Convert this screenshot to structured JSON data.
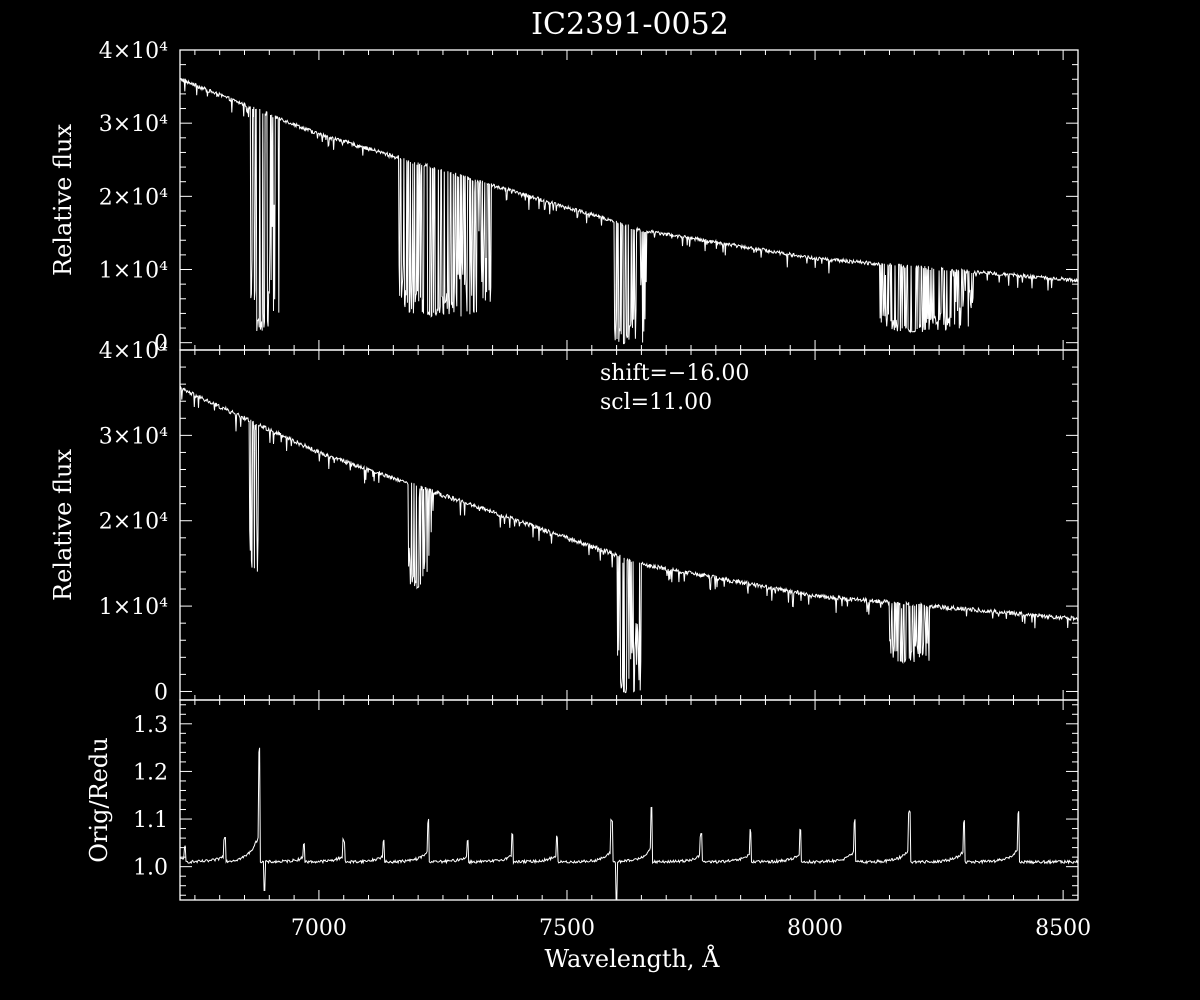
{
  "title": "IC2391-0052",
  "xlabel": "Wavelength, Å",
  "x_tick_labels": [
    "7000",
    "7500",
    "8000",
    "8500"
  ],
  "annotation": {
    "shift": "shift=−16.00",
    "scl": "scl=11.00"
  },
  "panels": [
    {
      "ylabel": "Relative flux",
      "y_tick_labels": [
        "0",
        "1×10⁴",
        "2×10⁴",
        "3×10⁴",
        "4×10⁴"
      ]
    },
    {
      "ylabel": "Relative flux",
      "y_tick_labels": [
        "0",
        "1×10⁴",
        "2×10⁴",
        "3×10⁴",
        "4×10⁴"
      ]
    },
    {
      "ylabel": "Orig/Redu",
      "y_tick_labels": [
        "1.0",
        "1.1",
        "1.2",
        "1.3"
      ]
    }
  ],
  "chart_data": [
    {
      "type": "line",
      "title": "IC2391-0052",
      "xlabel": "Wavelength, Å",
      "ylabel": "Relative flux",
      "xlim": [
        6720,
        8530
      ],
      "ylim": [
        -1000,
        40000
      ],
      "x_ticks": [
        7000,
        7500,
        8000,
        8500
      ],
      "y_ticks": [
        0,
        10000,
        20000,
        30000,
        40000
      ],
      "series": [
        {
          "continuum": {
            "x": [
              6720,
              7000,
              7500,
              7600,
              7640,
              8000,
              8530
            ],
            "y": [
              36000,
              28500,
              18500,
              16500,
              15500,
              11500,
              8500
            ]
          },
          "absorption_bands": [
            {
              "x": [
                6860,
                6920
              ],
              "min_y": 0
            },
            {
              "x": [
                7160,
                7350
              ],
              "min_y": 2500
            },
            {
              "x": [
                7590,
                7660
              ],
              "min_y": -1000
            },
            {
              "x": [
                8130,
                8320
              ],
              "min_y": 1000
            }
          ]
        }
      ]
    },
    {
      "type": "line",
      "xlabel": "Wavelength, Å",
      "ylabel": "Relative flux",
      "xlim": [
        6720,
        8530
      ],
      "ylim": [
        -1000,
        40000
      ],
      "x_ticks": [
        7000,
        7500,
        8000,
        8500
      ],
      "y_ticks": [
        0,
        10000,
        20000,
        30000,
        40000
      ],
      "series": [
        {
          "continuum": {
            "x": [
              6720,
              7000,
              7500,
              7600,
              7640,
              8000,
              8530
            ],
            "y": [
              35500,
              28000,
              18000,
              16000,
              15000,
              11200,
              8500
            ]
          },
          "absorption_bands": [
            {
              "x": [
                6860,
                6880
              ],
              "min_y": 12500
            },
            {
              "x": [
                7180,
                7230
              ],
              "min_y": 11500
            },
            {
              "x": [
                7600,
                7650
              ],
              "min_y": -1000
            },
            {
              "x": [
                8150,
                8230
              ],
              "min_y": 3000
            }
          ]
        }
      ]
    },
    {
      "type": "line",
      "xlabel": "Wavelength, Å",
      "ylabel": "Orig/Redu",
      "xlim": [
        6720,
        8530
      ],
      "ylim": [
        0.93,
        1.35
      ],
      "x_ticks": [
        7000,
        7500,
        8000,
        8500
      ],
      "y_ticks": [
        1.0,
        1.1,
        1.2,
        1.3
      ],
      "series": [
        {
          "baseline": 1.01,
          "peaks": {
            "x": [
              6730,
              6810,
              6880,
              6970,
              7050,
              7130,
              7220,
              7300,
              7390,
              7480,
              7590,
              7670,
              7770,
              7870,
              7970,
              8080,
              8190,
              8300,
              8410
            ],
            "y": [
              1.05,
              1.06,
              1.25,
              1.05,
              1.06,
              1.06,
              1.1,
              1.06,
              1.07,
              1.07,
              1.1,
              1.13,
              1.07,
              1.08,
              1.08,
              1.1,
              1.12,
              1.1,
              1.12
            ]
          },
          "dips": {
            "x": [
              6890,
              7600
            ],
            "y": [
              0.95,
              0.93
            ]
          }
        }
      ]
    }
  ]
}
